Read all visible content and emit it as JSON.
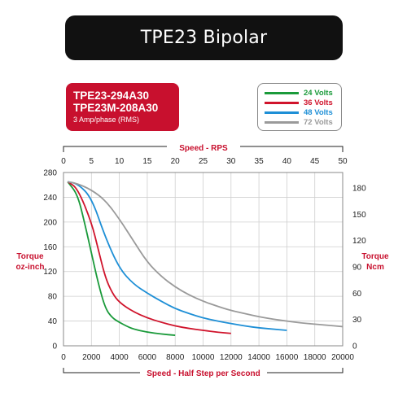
{
  "title": "TPE23 Bipolar",
  "model": {
    "line1": "TPE23-294A30",
    "line2": "TPE23M-208A30",
    "rating": "3 Amp/phase (RMS)"
  },
  "colors": {
    "model_bg": "#c8102e",
    "title_bg": "#111111",
    "axis_label": "#c8102e"
  },
  "chart_data": {
    "type": "line",
    "x_top": {
      "label": "Speed - RPS",
      "ticks": [
        0,
        5,
        10,
        15,
        20,
        25,
        30,
        35,
        40,
        45,
        50
      ],
      "range": [
        0,
        50
      ]
    },
    "x_bottom": {
      "label": "Speed - Half Step per Second",
      "ticks": [
        0,
        2000,
        4000,
        6000,
        8000,
        10000,
        12000,
        14000,
        16000,
        18000,
        20000
      ],
      "range": [
        0,
        20000
      ]
    },
    "y_left": {
      "label_line1": "Torque",
      "label_line2": "oz-inch",
      "ticks": [
        0,
        40,
        80,
        120,
        160,
        200,
        240,
        280
      ],
      "range": [
        0,
        280
      ]
    },
    "y_right": {
      "label_line1": "Torque",
      "label_line2": "Ncm",
      "ticks": [
        0,
        30,
        60,
        90,
        120,
        150,
        180
      ]
    },
    "grid": true,
    "legend_position": "top-right",
    "series": [
      {
        "name": "24 Volts",
        "color": "#1a9a3a",
        "x": [
          300,
          1000,
          1500,
          2000,
          2500,
          3000,
          3500,
          4000,
          4500,
          5000,
          6000,
          7000,
          8000
        ],
        "y": [
          265,
          245,
          200,
          150,
          100,
          60,
          45,
          38,
          32,
          27,
          22,
          19,
          17
        ]
      },
      {
        "name": "36 Volts",
        "color": "#d0142c",
        "x": [
          300,
          1000,
          2000,
          2500,
          3000,
          3500,
          4000,
          5000,
          6000,
          7000,
          8000,
          9000,
          10000,
          11000,
          12000
        ],
        "y": [
          265,
          255,
          200,
          155,
          110,
          85,
          70,
          55,
          45,
          38,
          32,
          28,
          25,
          22,
          20
        ]
      },
      {
        "name": "48 Volts",
        "color": "#1e8fd6",
        "x": [
          300,
          1000,
          2000,
          3000,
          4000,
          5000,
          6000,
          7000,
          8000,
          9000,
          10000,
          11000,
          12000,
          13000,
          14000,
          15000,
          16000
        ],
        "y": [
          265,
          262,
          240,
          175,
          125,
          100,
          85,
          72,
          60,
          52,
          45,
          40,
          36,
          32,
          29,
          27,
          25
        ]
      },
      {
        "name": "72 Volts",
        "color": "#9a9a9a",
        "x": [
          300,
          1000,
          2000,
          3000,
          4000,
          5000,
          6000,
          7000,
          8000,
          9000,
          10000,
          11000,
          12000,
          13000,
          14000,
          15000,
          16000,
          17000,
          18000,
          19000,
          20000
        ],
        "y": [
          265,
          262,
          252,
          235,
          205,
          170,
          135,
          112,
          95,
          82,
          72,
          64,
          57,
          52,
          47,
          43,
          40,
          37,
          35,
          33,
          31
        ]
      }
    ]
  }
}
